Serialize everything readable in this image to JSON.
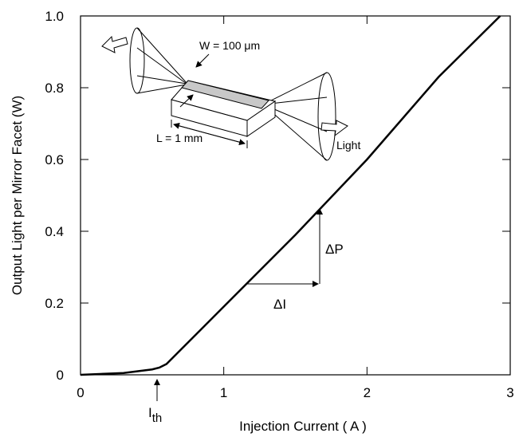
{
  "chart_data": {
    "type": "line",
    "xlabel": "Injection Current ( A )",
    "ylabel": "Output Light per Mirror Facet (W)",
    "x": [
      0,
      0.3,
      0.5,
      0.55,
      0.6,
      0.7,
      1.0,
      1.5,
      2.0,
      2.5,
      2.93
    ],
    "series": [
      {
        "color": "#000000",
        "values": [
          0,
          0.005,
          0.015,
          0.02,
          0.03,
          0.07,
          0.19,
          0.39,
          0.6,
          0.83,
          1.0
        ]
      }
    ],
    "xlim": [
      0,
      3
    ],
    "xticks": [
      0,
      1,
      2,
      3
    ],
    "ylim": [
      0,
      1
    ],
    "yticks": [
      0,
      0.2,
      0.4,
      0.6,
      0.8,
      {
        "value": 1,
        "label": "1.0"
      }
    ],
    "annotations": {
      "threshold": {
        "text": "I",
        "subscript": "th"
      },
      "delta_p": "ΔP",
      "delta_i": "ΔI",
      "width": "W = 100 μm",
      "length": "L = 1 mm",
      "light": "Light"
    }
  }
}
